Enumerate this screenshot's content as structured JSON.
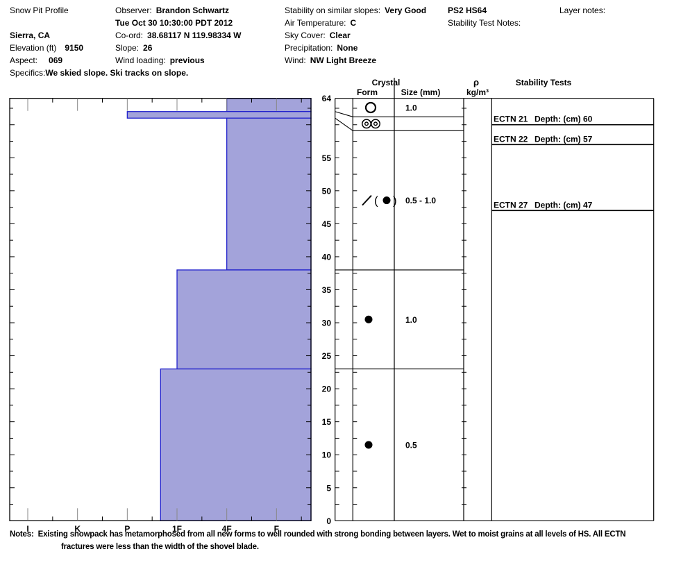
{
  "header": {
    "title": "Snow Pit Profile",
    "location": "Sierra, CA",
    "elevation_label": "Elevation (ft)",
    "elevation_value": "9150",
    "aspect_label": "Aspect:",
    "aspect_value": "069",
    "specifics_label": "Specifics:",
    "specifics_value": "We skied slope. Ski tracks on slope.",
    "observer_label": "Observer:",
    "observer_value": "Brandon Schwartz",
    "datetime": "Tue Oct 30 10:30:00 PDT 2012",
    "coord_label": "Co-ord:",
    "coord_value": "38.68117 N 119.98334 W",
    "slope_label": "Slope:",
    "slope_value": "26",
    "wind_loading_label": "Wind loading:",
    "wind_loading_value": "previous",
    "similar_slopes_label": "Stability on similar slopes:",
    "similar_slopes_value": "Very Good",
    "air_temp_label": "Air Temperature:",
    "air_temp_value": "C",
    "sky_label": "Sky Cover:",
    "sky_value": "Clear",
    "precip_label": "Precipitation:",
    "precip_value": "None",
    "wind_label": "Wind:",
    "wind_value": "NW Light Breeze",
    "pit_code": "PS2 HS64",
    "stability_test_notes_label": "Stability Test Notes:",
    "layer_notes_label": "Layer notes:"
  },
  "notes": {
    "label": "Notes:",
    "line1": "Existing snowpack has metamorphosed from all new forms to well rounded with strong bonding between layers. Wet to moist grains at all levels of HS. All ECTN",
    "line2": "fractures were less than the width of the shovel blade."
  },
  "chart_data": {
    "type": "bar",
    "subtype": "snow-pit-hardness-profile",
    "depth_axis": {
      "unit": "cm",
      "max": 64,
      "min": 0,
      "tick_labels": [
        64,
        55,
        50,
        45,
        40,
        35,
        30,
        25,
        20,
        15,
        10,
        5,
        0
      ],
      "minor_tick_interval_cm": 2.5
    },
    "hardness_axis": {
      "categories": [
        "I",
        "K",
        "P",
        "1F",
        "4F",
        "F"
      ]
    },
    "layers": [
      {
        "top_cm": 64,
        "bottom_cm": 62,
        "display_bottom_cm": 61.2,
        "hardness": "4F",
        "hardness_index": 4,
        "form_symbol": "clustered-rounded-circle",
        "size_mm": "1.0"
      },
      {
        "top_cm": 62,
        "bottom_cm": 61,
        "display_bottom_cm": 59.1,
        "hardness": "P",
        "hardness_index": 2,
        "form_symbol": "melt-freeze-crust",
        "size_mm": ""
      },
      {
        "top_cm": 61,
        "bottom_cm": 38,
        "hardness": "4F",
        "hardness_index": 4,
        "form_symbol": "decomposing-with-rounded",
        "size_mm": "0.5 - 1.0"
      },
      {
        "top_cm": 38,
        "bottom_cm": 23,
        "hardness": "1F",
        "hardness_index": 3,
        "form_symbol": "rounded-grains",
        "size_mm": "1.0"
      },
      {
        "top_cm": 23,
        "bottom_cm": 0,
        "hardness": "P-1F",
        "hardness_index": 2.67,
        "form_symbol": "rounded-grains",
        "size_mm": "0.5"
      }
    ],
    "stability_tests": [
      {
        "label": "ECTN 21",
        "depth_label": "Depth: (cm) 60",
        "depth_cm": 60
      },
      {
        "label": "ECTN 22",
        "depth_label": "Depth: (cm) 57",
        "depth_cm": 57
      },
      {
        "label": "ECTN 27",
        "depth_label": "Depth: (cm) 47",
        "depth_cm": 47
      }
    ],
    "column_headers": {
      "crystal": "Crystal",
      "form": "Form",
      "size": "Size (mm)",
      "rho": "ρ",
      "rho_unit": "kg/m³",
      "stability": "Stability Tests"
    },
    "colors": {
      "bar_fill": "#a3a3da",
      "bar_edge": "#2222cc",
      "major_tick": "#888888",
      "frame": "#000000"
    },
    "legend_position": "none",
    "grid": false
  }
}
